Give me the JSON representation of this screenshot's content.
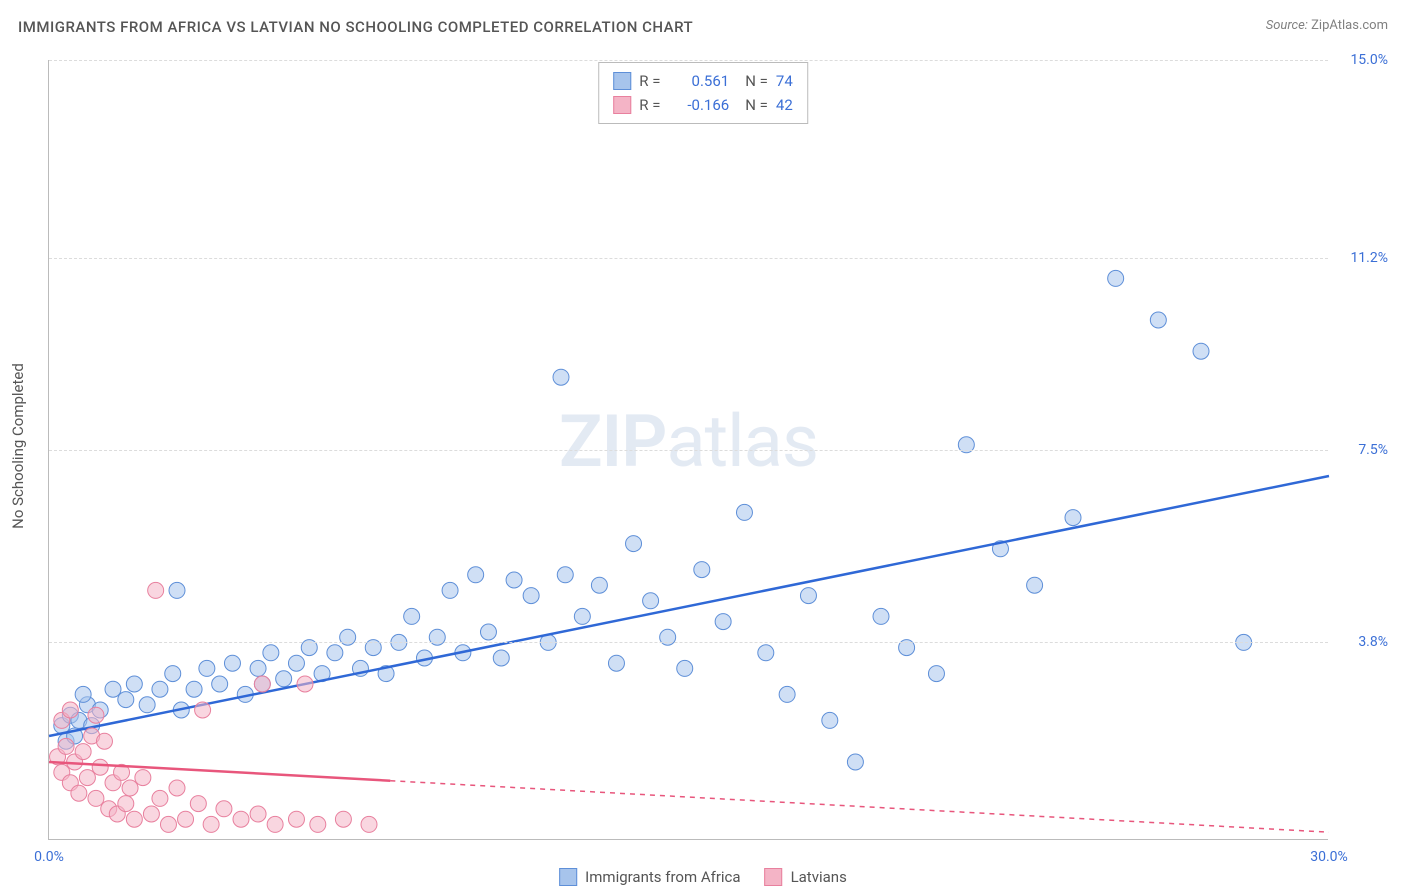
{
  "title": "IMMIGRANTS FROM AFRICA VS LATVIAN NO SCHOOLING COMPLETED CORRELATION CHART",
  "source": {
    "label": "Source:",
    "name": "ZipAtlas.com"
  },
  "watermark": {
    "bold": "ZIP",
    "light": "atlas"
  },
  "y_axis_title": "No Schooling Completed",
  "chart": {
    "type": "scatter",
    "xlim": [
      0,
      30
    ],
    "ylim": [
      0,
      15
    ],
    "x_ticks": [
      {
        "value": 0.0,
        "label": "0.0%"
      },
      {
        "value": 30.0,
        "label": "30.0%"
      }
    ],
    "y_ticks": [
      {
        "value": 3.8,
        "label": "3.8%"
      },
      {
        "value": 7.5,
        "label": "7.5%"
      },
      {
        "value": 11.2,
        "label": "11.2%"
      },
      {
        "value": 15.0,
        "label": "15.0%"
      }
    ],
    "gridline_color": "#dcdcdc",
    "background_color": "#ffffff",
    "series": [
      {
        "name": "Immigrants from Africa",
        "fill_color": "#a7c4ec",
        "stroke_color": "#5e8fd8",
        "fill_opacity": 0.55,
        "marker_radius": 8,
        "correlation": {
          "r": "0.561",
          "n": "74"
        },
        "trendline": {
          "color": "#2f68d6",
          "width": 2.5,
          "style": "solid",
          "x1": 0,
          "y1": 2.0,
          "x2": 30,
          "y2": 7.0
        },
        "points": [
          [
            0.3,
            2.2
          ],
          [
            0.4,
            1.9
          ],
          [
            0.5,
            2.4
          ],
          [
            0.6,
            2.0
          ],
          [
            0.7,
            2.3
          ],
          [
            0.9,
            2.6
          ],
          [
            1.2,
            2.5
          ],
          [
            1.5,
            2.9
          ],
          [
            1.8,
            2.7
          ],
          [
            2.0,
            3.0
          ],
          [
            2.3,
            2.6
          ],
          [
            2.6,
            2.9
          ],
          [
            2.9,
            3.2
          ],
          [
            3.1,
            2.5
          ],
          [
            3.4,
            2.9
          ],
          [
            3.7,
            3.3
          ],
          [
            4.0,
            3.0
          ],
          [
            4.3,
            3.4
          ],
          [
            4.6,
            2.8
          ],
          [
            4.9,
            3.3
          ],
          [
            5.2,
            3.6
          ],
          [
            5.5,
            3.1
          ],
          [
            5.8,
            3.4
          ],
          [
            6.1,
            3.7
          ],
          [
            6.4,
            3.2
          ],
          [
            6.7,
            3.6
          ],
          [
            7.0,
            3.9
          ],
          [
            7.3,
            3.3
          ],
          [
            7.6,
            3.7
          ],
          [
            7.9,
            3.2
          ],
          [
            8.2,
            3.8
          ],
          [
            8.5,
            4.3
          ],
          [
            8.8,
            3.5
          ],
          [
            9.1,
            3.9
          ],
          [
            9.4,
            4.8
          ],
          [
            9.7,
            3.6
          ],
          [
            10.0,
            5.1
          ],
          [
            10.3,
            4.0
          ],
          [
            10.6,
            3.5
          ],
          [
            10.9,
            5.0
          ],
          [
            11.3,
            4.7
          ],
          [
            11.7,
            3.8
          ],
          [
            12.1,
            5.1
          ],
          [
            12.5,
            4.3
          ],
          [
            12.9,
            4.9
          ],
          [
            13.3,
            3.4
          ],
          [
            13.7,
            5.7
          ],
          [
            14.1,
            4.6
          ],
          [
            14.5,
            3.9
          ],
          [
            14.9,
            3.3
          ],
          [
            15.3,
            5.2
          ],
          [
            15.8,
            4.2
          ],
          [
            16.3,
            6.3
          ],
          [
            16.8,
            3.6
          ],
          [
            17.3,
            2.8
          ],
          [
            17.8,
            4.7
          ],
          [
            18.3,
            2.3
          ],
          [
            18.9,
            1.5
          ],
          [
            19.5,
            4.3
          ],
          [
            20.1,
            3.7
          ],
          [
            20.8,
            3.2
          ],
          [
            21.5,
            7.6
          ],
          [
            22.3,
            5.6
          ],
          [
            23.1,
            4.9
          ],
          [
            24.0,
            6.2
          ],
          [
            25.0,
            10.8
          ],
          [
            26.0,
            10.0
          ],
          [
            27.0,
            9.4
          ],
          [
            28.0,
            3.8
          ],
          [
            12.0,
            8.9
          ],
          [
            3.0,
            4.8
          ],
          [
            5.0,
            3.0
          ],
          [
            0.8,
            2.8
          ],
          [
            1.0,
            2.2
          ]
        ]
      },
      {
        "name": "Latvians",
        "fill_color": "#f4b4c6",
        "stroke_color": "#e8809e",
        "fill_opacity": 0.55,
        "marker_radius": 8,
        "correlation": {
          "r": "-0.166",
          "n": "42"
        },
        "trendline": {
          "color": "#e8567c",
          "width": 2.5,
          "style": "solid_then_dashed",
          "solid_xmax": 8,
          "x1": 0,
          "y1": 1.5,
          "x2": 30,
          "y2": 0.15
        },
        "points": [
          [
            0.2,
            1.6
          ],
          [
            0.3,
            1.3
          ],
          [
            0.4,
            1.8
          ],
          [
            0.5,
            1.1
          ],
          [
            0.6,
            1.5
          ],
          [
            0.7,
            0.9
          ],
          [
            0.8,
            1.7
          ],
          [
            0.9,
            1.2
          ],
          [
            1.0,
            2.0
          ],
          [
            1.1,
            0.8
          ],
          [
            1.2,
            1.4
          ],
          [
            1.3,
            1.9
          ],
          [
            1.4,
            0.6
          ],
          [
            1.5,
            1.1
          ],
          [
            1.6,
            0.5
          ],
          [
            1.7,
            1.3
          ],
          [
            1.8,
            0.7
          ],
          [
            1.9,
            1.0
          ],
          [
            2.0,
            0.4
          ],
          [
            2.2,
            1.2
          ],
          [
            2.4,
            0.5
          ],
          [
            2.6,
            0.8
          ],
          [
            2.8,
            0.3
          ],
          [
            3.0,
            1.0
          ],
          [
            3.2,
            0.4
          ],
          [
            3.5,
            0.7
          ],
          [
            3.8,
            0.3
          ],
          [
            4.1,
            0.6
          ],
          [
            4.5,
            0.4
          ],
          [
            4.9,
            0.5
          ],
          [
            5.3,
            0.3
          ],
          [
            5.8,
            0.4
          ],
          [
            6.3,
            0.3
          ],
          [
            6.9,
            0.4
          ],
          [
            7.5,
            0.3
          ],
          [
            0.3,
            2.3
          ],
          [
            0.5,
            2.5
          ],
          [
            1.1,
            2.4
          ],
          [
            2.5,
            4.8
          ],
          [
            3.6,
            2.5
          ],
          [
            5.0,
            3.0
          ],
          [
            6.0,
            3.0
          ]
        ]
      }
    ]
  },
  "legend_bottom": [
    {
      "swatch_fill": "#a7c4ec",
      "swatch_stroke": "#5e8fd8",
      "label": "Immigrants from Africa"
    },
    {
      "swatch_fill": "#f4b4c6",
      "swatch_stroke": "#e8809e",
      "label": "Latvians"
    }
  ]
}
